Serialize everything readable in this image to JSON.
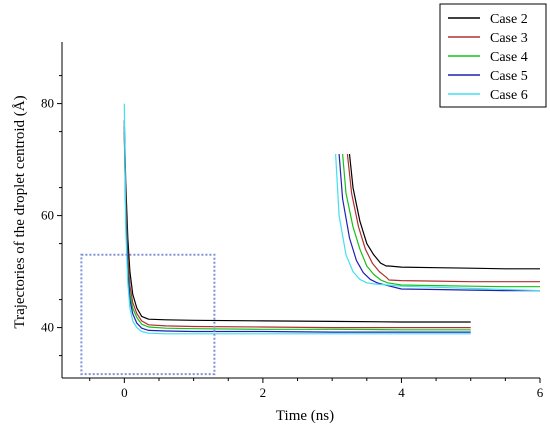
{
  "chart_data": {
    "type": "line",
    "title": "",
    "xlabel": "Time (ns)",
    "ylabel": "Trajectories of the droplet centroid (Å)",
    "xlim": [
      -0.9,
      6.0
    ],
    "ylim": [
      31,
      91
    ],
    "x_ticks": [
      0,
      2,
      4,
      6
    ],
    "y_ticks": [
      40,
      60,
      80
    ],
    "grid": false,
    "legend_position": "top-right",
    "annotation": "dotted box marking zoomed region",
    "series": [
      {
        "name": "Case 2",
        "color": "#000000",
        "segments": [
          {
            "x": [
              0.0,
              0.02,
              0.05,
              0.08,
              0.12,
              0.18,
              0.25,
              0.35,
              0.6,
              1.0,
              2.0,
              3.0,
              4.0,
              5.0
            ],
            "y": [
              77,
              66,
              56,
              50,
              46,
              43.5,
              42,
              41.5,
              41.4,
              41.3,
              41.2,
              41.1,
              41.0,
              41.0
            ]
          },
          {
            "x": [
              3.25,
              3.3,
              3.4,
              3.5,
              3.6,
              3.7,
              3.78,
              3.82,
              4.0,
              4.5,
              5.0,
              5.5,
              6.0
            ],
            "y": [
              71,
              65,
              59,
              55,
              53,
              51.5,
              51,
              51,
              50.8,
              50.7,
              50.6,
              50.5,
              50.5
            ]
          }
        ]
      },
      {
        "name": "Case 3",
        "color": "#b03030",
        "segments": [
          {
            "x": [
              0.0,
              0.02,
              0.05,
              0.08,
              0.12,
              0.18,
              0.25,
              0.35,
              0.6,
              1.0,
              2.0,
              3.0,
              4.0,
              5.0
            ],
            "y": [
              75,
              63,
              53,
              47.5,
              44.5,
              42.5,
              41.2,
              40.5,
              40.3,
              40.2,
              40.1,
              40.0,
              40.0,
              40.0
            ]
          },
          {
            "x": [
              3.22,
              3.28,
              3.38,
              3.48,
              3.58,
              3.68,
              3.78,
              3.82,
              4.0,
              4.5,
              5.0,
              5.5,
              6.0
            ],
            "y": [
              71,
              64,
              58,
              54,
              51.5,
              50,
              49,
              48.5,
              48.4,
              48.3,
              48.2,
              48.2,
              48.2
            ]
          }
        ]
      },
      {
        "name": "Case 4",
        "color": "#18c018",
        "segments": [
          {
            "x": [
              0.0,
              0.02,
              0.05,
              0.08,
              0.12,
              0.18,
              0.25,
              0.35,
              0.6,
              1.0,
              2.0,
              3.0,
              4.0,
              5.0
            ],
            "y": [
              74,
              61,
              51,
              46,
              43.5,
              41.8,
              40.6,
              40.1,
              39.9,
              39.8,
              39.7,
              39.7,
              39.6,
              39.6
            ]
          },
          {
            "x": [
              3.15,
              3.2,
              3.3,
              3.4,
              3.5,
              3.6,
              3.7,
              3.8,
              4.0,
              4.5,
              5.0,
              5.5,
              6.0
            ],
            "y": [
              71,
              64,
              58,
              54,
              51,
              49.5,
              48.5,
              48,
              47.6,
              47.5,
              47.4,
              47.3,
              47.3
            ]
          }
        ]
      },
      {
        "name": "Case 5",
        "color": "#2020b0",
        "segments": [
          {
            "x": [
              0.0,
              0.02,
              0.05,
              0.08,
              0.12,
              0.18,
              0.25,
              0.35,
              0.6,
              1.0,
              2.0,
              3.0,
              4.0,
              5.0
            ],
            "y": [
              76,
              60,
              50,
              45,
              42.5,
              40.8,
              39.9,
              39.5,
              39.4,
              39.3,
              39.3,
              39.2,
              39.2,
              39.2
            ]
          },
          {
            "x": [
              3.1,
              3.15,
              3.25,
              3.35,
              3.45,
              3.55,
              3.65,
              3.8,
              4.0,
              4.5,
              5.0,
              5.5,
              6.0
            ],
            "y": [
              71,
              63,
              56,
              52,
              49.8,
              48.6,
              48,
              47.5,
              46.9,
              46.8,
              46.7,
              46.6,
              46.6
            ]
          }
        ]
      },
      {
        "name": "Case 6",
        "color": "#40e0f0",
        "segments": [
          {
            "x": [
              0.0,
              0.02,
              0.05,
              0.08,
              0.12,
              0.18,
              0.25,
              0.35,
              0.6,
              1.0,
              2.0,
              3.0,
              4.0,
              5.0
            ],
            "y": [
              80,
              58,
              48,
              43.5,
              41.2,
              40,
              39.3,
              39.0,
              38.9,
              38.9,
              38.9,
              38.9,
              38.9,
              38.9
            ]
          },
          {
            "x": [
              3.05,
              3.1,
              3.2,
              3.3,
              3.4,
              3.5,
              3.6,
              3.8,
              4.0,
              4.5,
              5.0,
              5.5,
              6.0
            ],
            "y": [
              71,
              60,
              53,
              50,
              48.6,
              48,
              47.8,
              47.6,
              47.4,
              47.2,
              47.0,
              46.8,
              46.6
            ]
          }
        ]
      }
    ]
  }
}
